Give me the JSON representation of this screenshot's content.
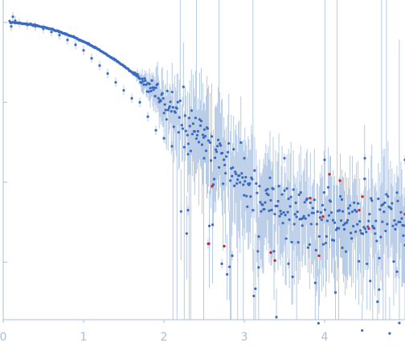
{
  "chart_data": {
    "type": "scatter",
    "title": "",
    "xlabel": "",
    "ylabel": "",
    "log_y": true,
    "grid": false,
    "legend": "none",
    "xlim": [
      0,
      5
    ],
    "ylim_log10": [
      -3.72,
      0.28
    ],
    "x_ticks": [
      0,
      1,
      2,
      3,
      4
    ],
    "x_tick_labels": [
      "0",
      "1",
      "2",
      "3",
      "4"
    ],
    "y_ticks_log10": [
      0,
      -1,
      -2,
      -3
    ],
    "colors": {
      "points": "#3a6bc1",
      "outliers": "#d62728",
      "error_bars": "#b7cbe6",
      "axis": "#a9bedb"
    },
    "series": [
      {
        "role": "measured",
        "color": "#3a6bc1",
        "model": "guinier_plus_background",
        "q_range": [
          0.08,
          5.0
        ],
        "n_points": 490,
        "i0": 1.0,
        "rg": 1.3,
        "background": 0.0035,
        "scatter_log10_low_q": 0.012,
        "scatter_log10_high_q": 0.5,
        "points": [
          [
            0.1,
            -0.05
          ],
          [
            0.12,
            0.07
          ],
          [
            0.15,
            0.02
          ],
          [
            0.2,
            -0.01
          ],
          [
            0.3,
            -0.03
          ],
          [
            0.4,
            -0.05
          ],
          [
            0.5,
            -0.08
          ],
          [
            0.6,
            -0.12
          ],
          [
            0.7,
            -0.16
          ],
          [
            0.8,
            -0.22
          ],
          [
            0.9,
            -0.28
          ],
          [
            1.0,
            -0.35
          ],
          [
            1.1,
            -0.45
          ],
          [
            1.2,
            -0.54
          ],
          [
            1.3,
            -0.64
          ],
          [
            1.4,
            -0.75
          ],
          [
            1.5,
            -0.85
          ],
          [
            1.6,
            -0.95
          ],
          [
            1.7,
            -1.0
          ],
          [
            1.8,
            -1.18
          ],
          [
            1.9,
            -1.35
          ],
          [
            2.0,
            -1.45
          ],
          [
            2.1,
            -1.55
          ],
          [
            2.3,
            -1.65
          ],
          [
            2.5,
            -1.7
          ],
          [
            3.0,
            -1.7
          ],
          [
            3.5,
            -1.7
          ],
          [
            4.0,
            -1.72
          ],
          [
            4.5,
            -1.7
          ],
          [
            5.0,
            -1.72
          ],
          [
            2.3,
            -2.35
          ],
          [
            2.55,
            -2.77
          ],
          [
            2.72,
            -3.02
          ],
          [
            2.85,
            -2.92
          ],
          [
            3.18,
            -2.68
          ],
          [
            3.55,
            -3.02
          ],
          [
            4.22,
            -2.82
          ],
          [
            4.68,
            -2.95
          ],
          [
            4.9,
            -3.12
          ]
        ]
      },
      {
        "role": "outliers",
        "color": "#d62728",
        "points": [
          [
            2.56,
            -2.77
          ],
          [
            2.6,
            -2.05
          ],
          [
            2.75,
            -2.8
          ],
          [
            3.33,
            -2.88
          ],
          [
            3.38,
            -2.98
          ],
          [
            3.82,
            -2.2
          ],
          [
            3.93,
            -2.92
          ],
          [
            3.98,
            -2.43
          ],
          [
            4.06,
            -1.9
          ],
          [
            4.19,
            -1.98
          ],
          [
            4.43,
            -2.35
          ],
          [
            4.47,
            -2.18
          ],
          [
            4.55,
            -2.58
          ],
          [
            5.0,
            -2.4
          ]
        ]
      }
    ]
  }
}
